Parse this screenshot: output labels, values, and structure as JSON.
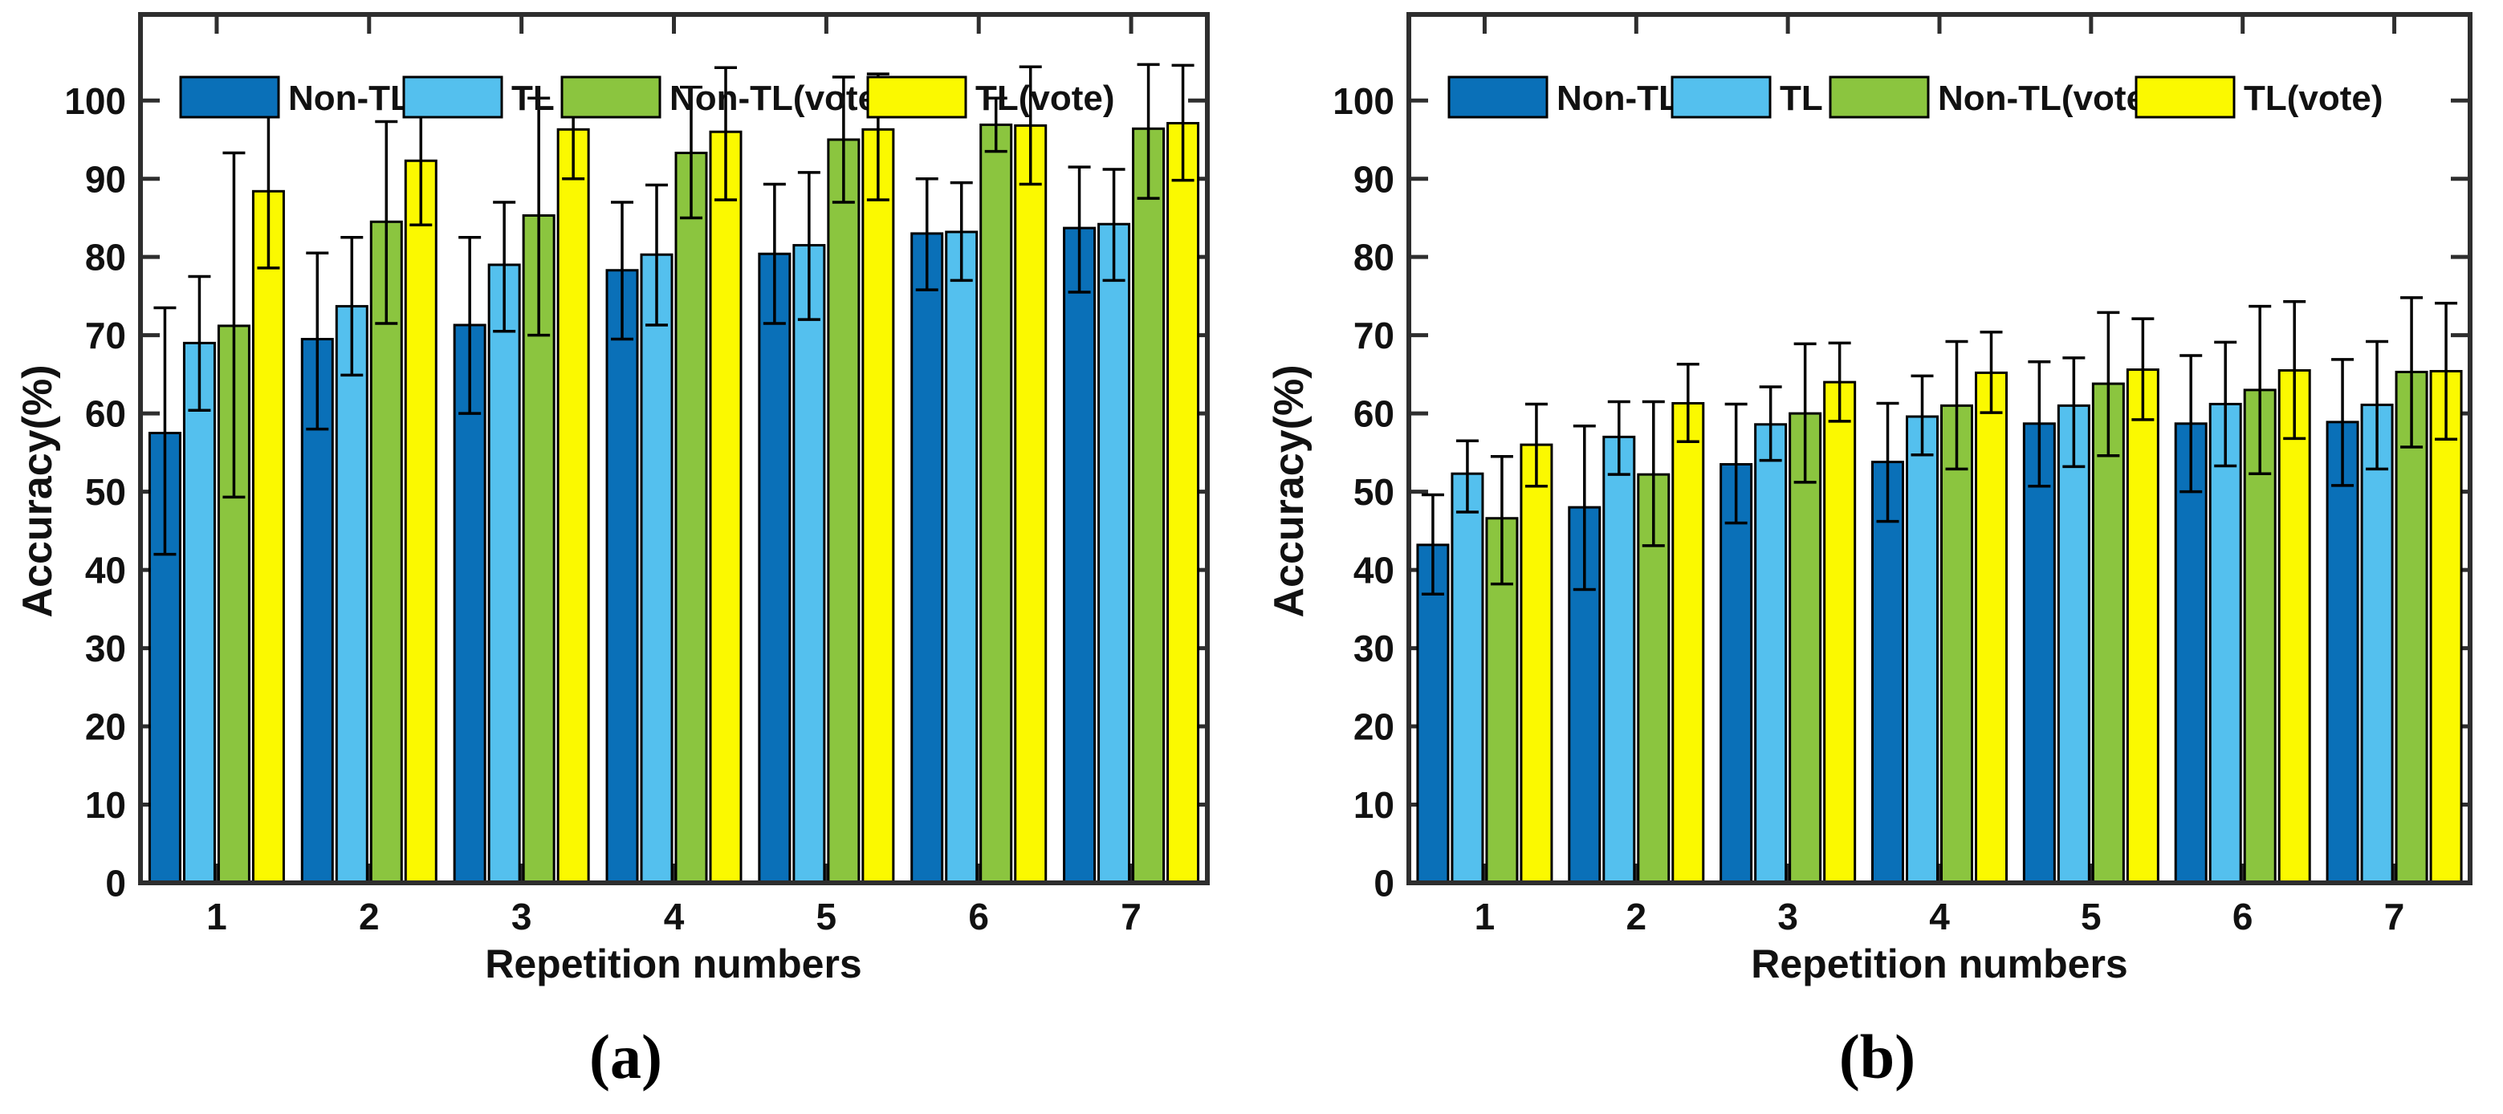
{
  "figure": {
    "background": "#ffffff",
    "axis_color": "#2e2e2e",
    "bar_edge_color": "#000000",
    "error_bar_color": "#000000",
    "series_colors": {
      "non_tl": "#0a70b8",
      "tl": "#54c0ee",
      "non_tl_vote": "#8bc53f",
      "tl_vote": "#fbf900"
    }
  },
  "chart_data": [
    {
      "panel": "a",
      "caption": "(a)",
      "type": "bar",
      "title": "",
      "xlabel": "Repetition numbers",
      "ylabel": "Accuracy(%)",
      "categories": [
        "1",
        "2",
        "3",
        "4",
        "5",
        "6",
        "7"
      ],
      "yticks": [
        0,
        10,
        20,
        30,
        40,
        50,
        60,
        70,
        80,
        90,
        100
      ],
      "ylim": [
        0,
        111
      ],
      "grid": false,
      "legend_position": "top-inside-horizontal",
      "series": [
        {
          "name": "Non-TL",
          "color": "#0a70b8",
          "values": [
            57.5,
            69.5,
            71.3,
            78.3,
            80.4,
            83.0,
            83.7
          ],
          "err_lo": [
            42.0,
            58.0,
            60.0,
            69.5,
            71.5,
            75.8,
            75.5
          ],
          "err_hi": [
            73.5,
            80.5,
            82.5,
            87.0,
            89.3,
            90.0,
            91.5
          ]
        },
        {
          "name": "TL",
          "color": "#54c0ee",
          "values": [
            69.0,
            73.7,
            79.0,
            80.3,
            81.5,
            83.2,
            84.2
          ],
          "err_lo": [
            60.4,
            64.9,
            70.5,
            71.3,
            72.0,
            77.0,
            77.0
          ],
          "err_hi": [
            77.5,
            82.5,
            87.0,
            89.2,
            90.8,
            89.5,
            91.2
          ]
        },
        {
          "name": "Non-TL(vote)",
          "color": "#8bc53f",
          "values": [
            71.2,
            84.5,
            85.3,
            93.3,
            95.0,
            96.9,
            96.4
          ],
          "err_lo": [
            49.3,
            71.5,
            70.0,
            85.0,
            87.0,
            93.5,
            87.5
          ],
          "err_hi": [
            93.3,
            97.3,
            100.3,
            101.7,
            103.0,
            100.3,
            104.6
          ]
        },
        {
          "name": "TL(vote)",
          "color": "#fbf900",
          "values": [
            88.4,
            92.3,
            96.3,
            96.0,
            96.3,
            96.8,
            97.1
          ],
          "err_lo": [
            78.6,
            84.1,
            90.0,
            87.3,
            87.3,
            89.3,
            89.8
          ],
          "err_hi": [
            98.1,
            100.3,
            102.5,
            104.2,
            103.4,
            104.3,
            104.5
          ]
        }
      ]
    },
    {
      "panel": "b",
      "caption": "(b)",
      "type": "bar",
      "title": "",
      "xlabel": "Repetition numbers",
      "ylabel": "Accuracy(%)",
      "categories": [
        "1",
        "2",
        "3",
        "4",
        "5",
        "6",
        "7"
      ],
      "yticks": [
        0,
        10,
        20,
        30,
        40,
        50,
        60,
        70,
        80,
        90,
        100
      ],
      "ylim": [
        0,
        111
      ],
      "grid": false,
      "legend_position": "top-inside-horizontal",
      "series": [
        {
          "name": "Non-TL",
          "color": "#0a70b8",
          "values": [
            43.2,
            48.0,
            53.5,
            53.8,
            58.7,
            58.7,
            58.9
          ],
          "err_lo": [
            36.9,
            37.5,
            46.0,
            46.2,
            50.7,
            50.0,
            50.8
          ],
          "err_hi": [
            49.6,
            58.4,
            61.2,
            61.3,
            66.6,
            67.4,
            66.9
          ]
        },
        {
          "name": "TL",
          "color": "#54c0ee",
          "values": [
            52.3,
            57.0,
            58.6,
            59.6,
            61.0,
            61.2,
            61.1
          ],
          "err_lo": [
            47.4,
            52.2,
            54.0,
            54.7,
            53.2,
            53.3,
            52.9
          ],
          "err_hi": [
            56.5,
            61.5,
            63.4,
            64.8,
            67.1,
            69.1,
            69.2
          ]
        },
        {
          "name": "Non-TL(vote)",
          "color": "#8bc53f",
          "values": [
            46.6,
            52.2,
            60.0,
            61.0,
            63.8,
            63.0,
            65.3
          ],
          "err_lo": [
            38.2,
            43.1,
            51.2,
            52.9,
            54.6,
            52.3,
            55.7
          ],
          "err_hi": [
            54.5,
            61.5,
            68.9,
            69.2,
            72.9,
            73.7,
            74.8
          ]
        },
        {
          "name": "TL(vote)",
          "color": "#fbf900",
          "values": [
            56.0,
            61.3,
            64.0,
            65.2,
            65.6,
            65.5,
            65.4
          ],
          "err_lo": [
            50.7,
            56.4,
            59.0,
            60.1,
            59.2,
            56.8,
            56.7
          ],
          "err_hi": [
            61.2,
            66.3,
            69.0,
            70.4,
            72.1,
            74.3,
            74.1
          ]
        }
      ]
    }
  ]
}
